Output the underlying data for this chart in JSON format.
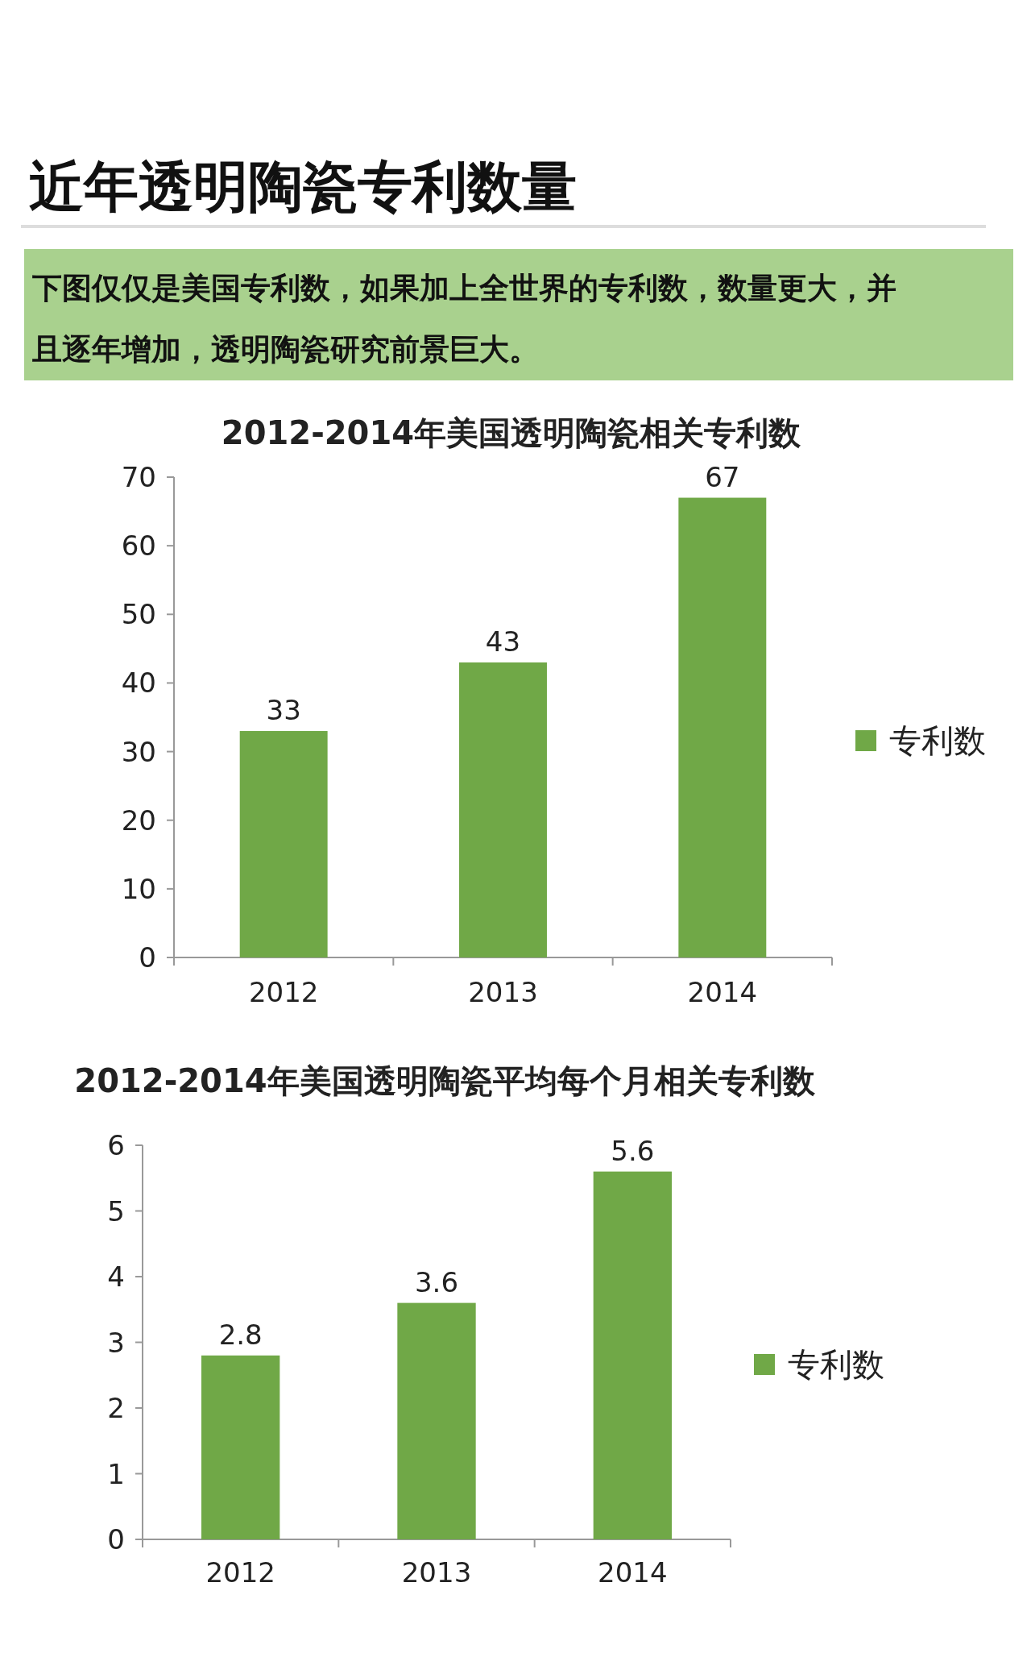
{
  "chart_data": [
    {
      "type": "other",
      "title": "近年透明陶瓷专利数量",
      "subtitle": "下图仅仅是美国专利数，如果加上全世界的专利数，数量更大，并且逐年增加，透明陶瓷研究前景巨大。"
    },
    {
      "type": "bar",
      "title": "2012-2014年美国透明陶瓷相关专利数",
      "categories": [
        "2012",
        "2013",
        "2014"
      ],
      "series": [
        {
          "name": "专利数",
          "color": "#70a847",
          "values": [
            33,
            43,
            67
          ]
        }
      ],
      "ylim": [
        0,
        70
      ],
      "yticks": [
        0,
        10,
        20,
        30,
        40,
        50,
        60,
        70
      ],
      "data_labels": true,
      "legend": "right",
      "grid": false
    },
    {
      "type": "bar",
      "title": "2012-2014年美国透明陶瓷平均每个月相关专利数",
      "categories": [
        "2012",
        "2013",
        "2014"
      ],
      "series": [
        {
          "name": "专利数",
          "color": "#70a847",
          "values": [
            2.8,
            3.6,
            5.6
          ]
        }
      ],
      "ylim": [
        0,
        6
      ],
      "yticks": [
        0,
        1,
        2,
        3,
        4,
        5,
        6
      ],
      "data_labels": true,
      "legend": "right",
      "grid": false
    }
  ]
}
